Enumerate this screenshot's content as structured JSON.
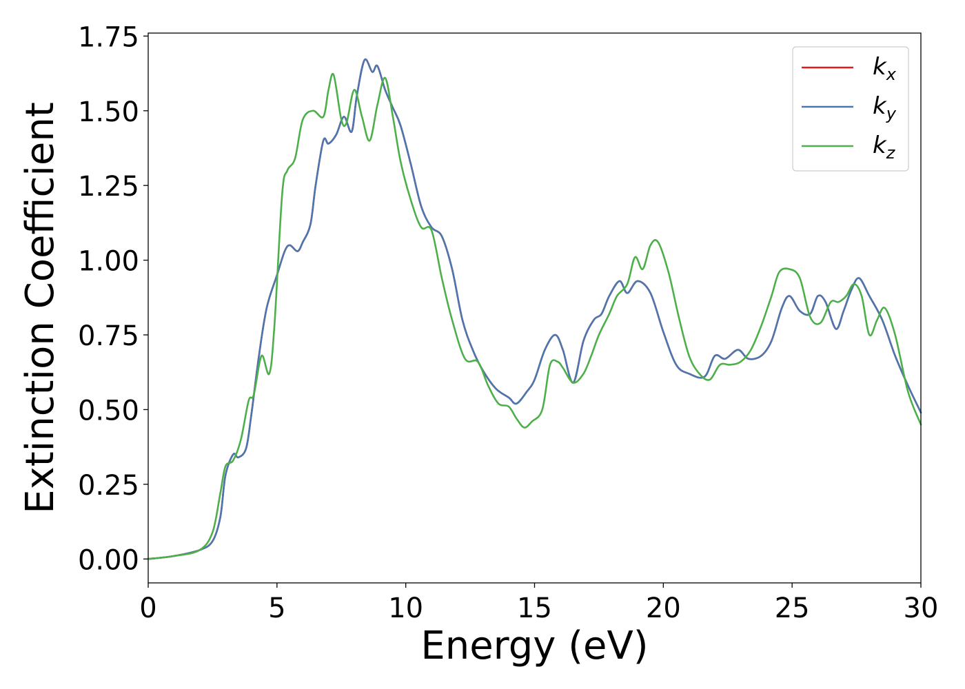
{
  "chart_data": {
    "type": "line",
    "title": "",
    "xlabel": "Energy (eV)",
    "ylabel": "Extinction Coefficient",
    "xlim": [
      0,
      30
    ],
    "ylim": [
      -0.08,
      1.76
    ],
    "x_ticks": [
      0,
      5,
      10,
      15,
      20,
      25,
      30
    ],
    "y_ticks": [
      0.0,
      0.25,
      0.5,
      0.75,
      1.0,
      1.25,
      1.5,
      1.75
    ],
    "x_tick_labels": [
      "0",
      "5",
      "10",
      "15",
      "20",
      "25",
      "30"
    ],
    "y_tick_labels": [
      "0.00",
      "0.25",
      "0.50",
      "0.75",
      "1.00",
      "1.25",
      "1.50",
      "1.75"
    ],
    "grid": false,
    "legend_position": "top-right",
    "series": [
      {
        "name": "k",
        "subscript": "x",
        "color": "#e41a1c",
        "x": [
          0,
          1,
          2,
          2.5,
          2.8,
          3.0,
          3.3,
          3.5,
          3.8,
          4.0,
          4.3,
          4.6,
          5.0,
          5.3,
          5.5,
          5.8,
          6.0,
          6.3,
          6.5,
          6.8,
          7.0,
          7.3,
          7.6,
          7.9,
          8.1,
          8.4,
          8.7,
          8.9,
          9.2,
          9.5,
          9.8,
          10.2,
          10.6,
          11.0,
          11.4,
          11.8,
          12.2,
          12.6,
          13.0,
          13.5,
          14.0,
          14.3,
          14.7,
          15.0,
          15.4,
          15.8,
          16.1,
          16.5,
          16.9,
          17.3,
          17.6,
          17.9,
          18.3,
          18.6,
          19.0,
          19.5,
          20.0,
          20.5,
          21.0,
          21.6,
          22.0,
          22.4,
          22.9,
          23.3,
          23.8,
          24.2,
          24.6,
          24.9,
          25.3,
          25.7,
          26.0,
          26.3,
          26.7,
          27.0,
          27.3,
          27.6,
          28.0,
          28.5,
          29.0,
          29.5,
          30.0
        ],
        "values": [
          0.0,
          0.01,
          0.03,
          0.06,
          0.14,
          0.28,
          0.35,
          0.34,
          0.37,
          0.48,
          0.68,
          0.84,
          0.95,
          1.03,
          1.05,
          1.03,
          1.06,
          1.12,
          1.25,
          1.4,
          1.39,
          1.42,
          1.48,
          1.43,
          1.55,
          1.67,
          1.63,
          1.65,
          1.57,
          1.51,
          1.45,
          1.32,
          1.18,
          1.11,
          1.08,
          0.97,
          0.8,
          0.7,
          0.63,
          0.57,
          0.54,
          0.52,
          0.56,
          0.6,
          0.7,
          0.75,
          0.7,
          0.59,
          0.73,
          0.8,
          0.82,
          0.88,
          0.93,
          0.89,
          0.93,
          0.89,
          0.76,
          0.65,
          0.62,
          0.61,
          0.68,
          0.67,
          0.7,
          0.67,
          0.68,
          0.73,
          0.84,
          0.88,
          0.83,
          0.82,
          0.88,
          0.86,
          0.77,
          0.83,
          0.9,
          0.94,
          0.88,
          0.8,
          0.68,
          0.58,
          0.49
        ]
      },
      {
        "name": "k",
        "subscript": "y",
        "color": "#4a77b0",
        "x": [
          0,
          1,
          2,
          2.5,
          2.8,
          3.0,
          3.3,
          3.5,
          3.8,
          4.0,
          4.3,
          4.6,
          5.0,
          5.3,
          5.5,
          5.8,
          6.0,
          6.3,
          6.5,
          6.8,
          7.0,
          7.3,
          7.6,
          7.9,
          8.1,
          8.4,
          8.7,
          8.9,
          9.2,
          9.5,
          9.8,
          10.2,
          10.6,
          11.0,
          11.4,
          11.8,
          12.2,
          12.6,
          13.0,
          13.5,
          14.0,
          14.3,
          14.7,
          15.0,
          15.4,
          15.8,
          16.1,
          16.5,
          16.9,
          17.3,
          17.6,
          17.9,
          18.3,
          18.6,
          19.0,
          19.5,
          20.0,
          20.5,
          21.0,
          21.6,
          22.0,
          22.4,
          22.9,
          23.3,
          23.8,
          24.2,
          24.6,
          24.9,
          25.3,
          25.7,
          26.0,
          26.3,
          26.7,
          27.0,
          27.3,
          27.6,
          28.0,
          28.5,
          29.0,
          29.5,
          30.0
        ],
        "values": [
          0.0,
          0.01,
          0.03,
          0.06,
          0.14,
          0.28,
          0.35,
          0.34,
          0.37,
          0.48,
          0.68,
          0.84,
          0.95,
          1.03,
          1.05,
          1.03,
          1.06,
          1.12,
          1.25,
          1.4,
          1.39,
          1.42,
          1.48,
          1.43,
          1.55,
          1.67,
          1.63,
          1.65,
          1.57,
          1.51,
          1.45,
          1.32,
          1.18,
          1.11,
          1.08,
          0.97,
          0.8,
          0.7,
          0.63,
          0.57,
          0.54,
          0.52,
          0.56,
          0.6,
          0.7,
          0.75,
          0.7,
          0.59,
          0.73,
          0.8,
          0.82,
          0.88,
          0.93,
          0.89,
          0.93,
          0.89,
          0.76,
          0.65,
          0.62,
          0.61,
          0.68,
          0.67,
          0.7,
          0.67,
          0.68,
          0.73,
          0.84,
          0.88,
          0.83,
          0.82,
          0.88,
          0.86,
          0.77,
          0.83,
          0.9,
          0.94,
          0.88,
          0.8,
          0.68,
          0.58,
          0.49
        ]
      },
      {
        "name": "k",
        "subscript": "z",
        "color": "#4daf4a",
        "x": [
          0,
          1,
          2,
          2.5,
          2.8,
          3.0,
          3.3,
          3.6,
          3.9,
          4.1,
          4.4,
          4.7,
          4.9,
          5.2,
          5.4,
          5.7,
          6.0,
          6.4,
          6.8,
          7.0,
          7.2,
          7.5,
          7.7,
          8.0,
          8.3,
          8.6,
          8.9,
          9.2,
          9.5,
          9.8,
          10.2,
          10.6,
          11.0,
          11.4,
          11.8,
          12.3,
          12.8,
          13.2,
          13.6,
          14.0,
          14.3,
          14.6,
          14.9,
          15.3,
          15.6,
          15.9,
          16.1,
          16.5,
          16.9,
          17.2,
          17.5,
          17.9,
          18.2,
          18.6,
          18.9,
          19.2,
          19.5,
          19.8,
          20.2,
          20.6,
          21.0,
          21.4,
          21.8,
          22.2,
          22.6,
          23.0,
          23.4,
          23.8,
          24.2,
          24.5,
          24.9,
          25.3,
          25.7,
          26.1,
          26.5,
          26.8,
          27.1,
          27.4,
          27.7,
          28.0,
          28.3,
          28.6,
          29.0,
          29.5,
          30.0
        ],
        "values": [
          0.0,
          0.01,
          0.03,
          0.09,
          0.22,
          0.31,
          0.33,
          0.4,
          0.53,
          0.55,
          0.68,
          0.62,
          0.78,
          1.22,
          1.3,
          1.34,
          1.47,
          1.5,
          1.48,
          1.57,
          1.62,
          1.47,
          1.46,
          1.57,
          1.48,
          1.4,
          1.52,
          1.61,
          1.48,
          1.33,
          1.2,
          1.11,
          1.1,
          0.94,
          0.8,
          0.67,
          0.66,
          0.58,
          0.52,
          0.51,
          0.47,
          0.44,
          0.46,
          0.5,
          0.65,
          0.66,
          0.64,
          0.59,
          0.62,
          0.68,
          0.75,
          0.82,
          0.88,
          0.92,
          1.01,
          0.97,
          1.05,
          1.06,
          0.96,
          0.81,
          0.68,
          0.62,
          0.6,
          0.65,
          0.65,
          0.66,
          0.7,
          0.78,
          0.88,
          0.96,
          0.97,
          0.94,
          0.81,
          0.79,
          0.86,
          0.86,
          0.88,
          0.92,
          0.88,
          0.75,
          0.8,
          0.84,
          0.75,
          0.56,
          0.45
        ]
      }
    ]
  }
}
